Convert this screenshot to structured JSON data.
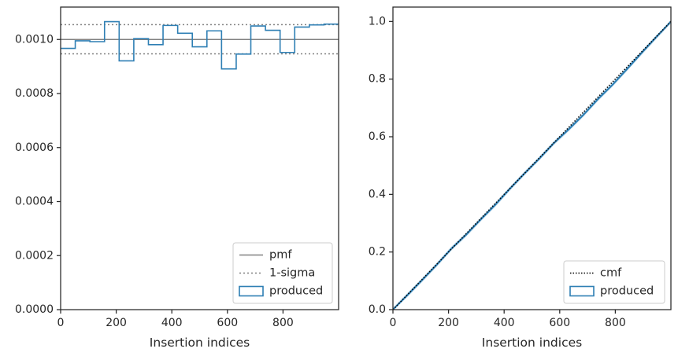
{
  "chart_data": [
    {
      "type": "histogram-step",
      "xlabel": "Insertion indices",
      "ylabel": "",
      "xlim": [
        0,
        1000
      ],
      "ylim": [
        0,
        0.00112
      ],
      "xticks": [
        0,
        200,
        400,
        600,
        800
      ],
      "xtick_labels": [
        "0",
        "200",
        "400",
        "600",
        "800"
      ],
      "yticks": [
        0,
        0.0002,
        0.0004,
        0.0006,
        0.0008,
        0.001
      ],
      "ytick_labels": [
        "0.0000",
        "0.0002",
        "0.0004",
        "0.0006",
        "0.0008",
        "0.0010"
      ],
      "grid": false,
      "legend_position": "lower-right",
      "bin_edges": [
        0,
        52.6,
        105.3,
        157.9,
        210.5,
        263.2,
        315.8,
        368.4,
        421.1,
        473.7,
        526.3,
        578.9,
        631.6,
        684.2,
        736.8,
        789.5,
        842.1,
        894.7,
        947.4,
        1000
      ],
      "reference_lines": [
        {
          "name": "pmf",
          "y": 0.001,
          "style": "solid",
          "color": "#808080"
        },
        {
          "name": "1-sigma",
          "y": [
            0.000947,
            0.001055
          ],
          "style": "dotted",
          "color": "#808080"
        }
      ],
      "series": [
        {
          "name": "produced",
          "type": "step",
          "color": "#2e7fb4",
          "values": [
            0.000967,
            0.000995,
            0.000992,
            0.001066,
            0.000921,
            0.001003,
            0.000981,
            0.001052,
            0.001023,
            0.000973,
            0.001032,
            0.000891,
            0.000946,
            0.00105,
            0.001034,
            0.000952,
            0.001046,
            0.001054,
            0.001057
          ]
        }
      ],
      "legend": [
        "pmf",
        "1-sigma",
        "produced"
      ]
    },
    {
      "type": "line",
      "xlabel": "Insertion indices",
      "ylabel": "",
      "xlim": [
        0,
        1000
      ],
      "ylim": [
        0,
        1.05
      ],
      "xticks": [
        0,
        200,
        400,
        600,
        800
      ],
      "xtick_labels": [
        "0",
        "200",
        "400",
        "600",
        "800"
      ],
      "yticks": [
        0,
        0.2,
        0.4,
        0.6,
        0.8,
        1.0
      ],
      "ytick_labels": [
        "0.0",
        "0.2",
        "0.4",
        "0.6",
        "0.8",
        "1.0"
      ],
      "grid": false,
      "legend_position": "lower-right",
      "series": [
        {
          "name": "cmf",
          "style": "dotted",
          "color": "#000000",
          "x": [
            0,
            1000
          ],
          "y": [
            0,
            1.0
          ]
        },
        {
          "name": "produced",
          "style": "solid",
          "color": "#2e7fb4",
          "x": [
            0,
            52.6,
            105.3,
            157.9,
            210.5,
            263.2,
            315.8,
            368.4,
            421.1,
            473.7,
            526.3,
            578.9,
            631.6,
            684.2,
            736.8,
            789.5,
            842.1,
            894.7,
            947.4,
            1000
          ],
          "y": [
            0,
            0.051,
            0.103,
            0.156,
            0.212,
            0.26,
            0.313,
            0.364,
            0.42,
            0.473,
            0.524,
            0.578,
            0.625,
            0.675,
            0.73,
            0.78,
            0.835,
            0.891,
            0.946,
            1.0
          ]
        }
      ],
      "legend": [
        "cmf",
        "produced"
      ]
    }
  ]
}
